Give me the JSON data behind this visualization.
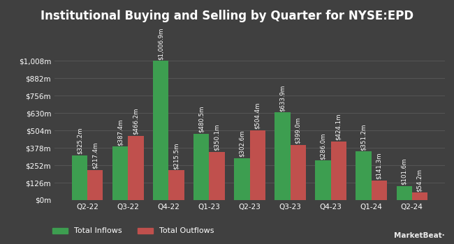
{
  "title": "Institutional Buying and Selling by Quarter for NYSE:EPD",
  "quarters": [
    "Q2-22",
    "Q3-22",
    "Q4-22",
    "Q1-23",
    "Q2-23",
    "Q3-23",
    "Q4-23",
    "Q1-24",
    "Q2-24"
  ],
  "inflows": [
    325.2,
    387.4,
    1006.9,
    480.5,
    302.6,
    633.9,
    286.0,
    351.2,
    101.6
  ],
  "outflows": [
    217.4,
    466.2,
    215.5,
    350.1,
    504.4,
    399.0,
    424.1,
    141.3,
    54.2
  ],
  "inflow_labels": [
    "$325.2m",
    "$387.4m",
    "$1,006.9m",
    "$480.5m",
    "$302.6m",
    "$633.9m",
    "$286.0m",
    "$351.2m",
    "$101.6m"
  ],
  "outflow_labels": [
    "$217.4m",
    "$466.2m",
    "$215.5m",
    "$350.1m",
    "$504.4m",
    "$399.0m",
    "$424.1m",
    "$141.3m",
    "$54.2m"
  ],
  "inflow_color": "#3d9e50",
  "outflow_color": "#c0504d",
  "background_color": "#404040",
  "plot_bg_color": "#3a3a3a",
  "text_color": "#ffffff",
  "grid_color": "#585858",
  "yticks": [
    0,
    126,
    252,
    378,
    504,
    630,
    756,
    882,
    1008
  ],
  "ytick_labels": [
    "$0m",
    "$126m",
    "$252m",
    "$378m",
    "$504m",
    "$630m",
    "$756m",
    "$882m",
    "$1,008m"
  ],
  "ylim": [
    0,
    1200
  ],
  "legend_labels": [
    "Total Inflows",
    "Total Outflows"
  ],
  "bar_width": 0.38,
  "title_fontsize": 12,
  "label_fontsize": 6.2,
  "tick_fontsize": 7.5,
  "legend_fontsize": 8
}
